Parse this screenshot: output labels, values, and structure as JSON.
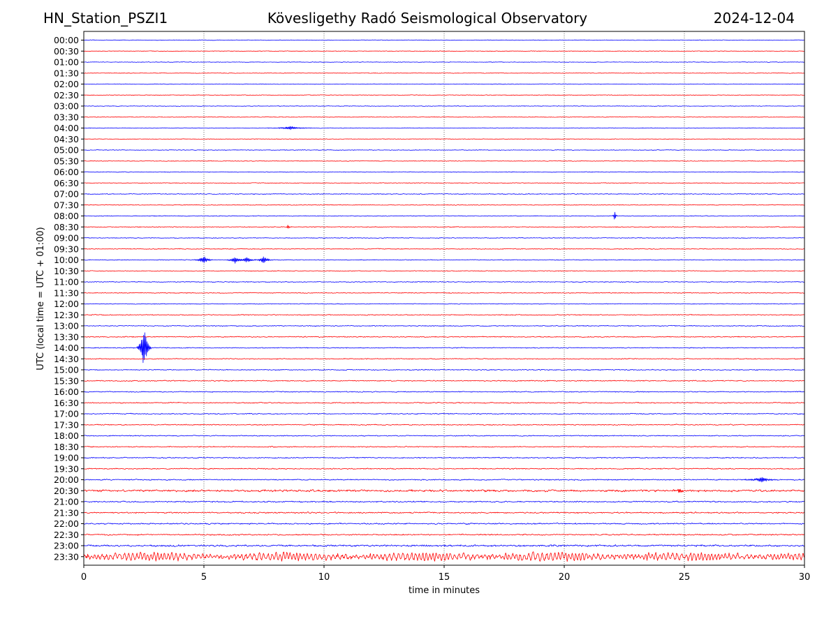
{
  "header": {
    "station": "HN_Station_PSZI1",
    "title": "Kövesligethy Radó Seismological Observatory",
    "date": "2024-12-04"
  },
  "chart_data": {
    "type": "line",
    "title": "Kövesligethy Radó Seismological Observatory",
    "xlabel": "time in minutes",
    "ylabel": "UTC (local time = UTC + 01:00)",
    "xlim": [
      0,
      30
    ],
    "xticks": [
      0,
      5,
      10,
      15,
      20,
      25,
      30
    ],
    "grid": "vertical dotted lines at x ticks",
    "trace_colors": [
      "#0000ff",
      "#ff0000"
    ],
    "rows": [
      "00:00",
      "00:30",
      "01:00",
      "01:30",
      "02:00",
      "02:30",
      "03:00",
      "03:30",
      "04:00",
      "04:30",
      "05:00",
      "05:30",
      "06:00",
      "06:30",
      "07:00",
      "07:30",
      "08:00",
      "08:30",
      "09:00",
      "09:30",
      "10:00",
      "10:30",
      "11:00",
      "11:30",
      "12:00",
      "12:30",
      "13:00",
      "13:30",
      "14:00",
      "14:30",
      "15:00",
      "15:30",
      "16:00",
      "16:30",
      "17:00",
      "17:30",
      "18:00",
      "18:30",
      "19:00",
      "19:30",
      "20:00",
      "20:30",
      "21:00",
      "21:30",
      "22:00",
      "22:30",
      "23:00",
      "23:30"
    ],
    "noise_level": [
      0.35,
      0.35,
      0.35,
      0.35,
      0.35,
      0.35,
      0.35,
      0.35,
      0.35,
      0.35,
      0.4,
      0.4,
      0.4,
      0.4,
      0.5,
      0.4,
      0.45,
      0.5,
      0.45,
      0.5,
      0.45,
      0.45,
      0.5,
      0.5,
      0.45,
      0.55,
      0.55,
      0.6,
      0.55,
      0.55,
      0.6,
      0.6,
      0.6,
      0.65,
      0.6,
      0.6,
      0.6,
      0.6,
      0.65,
      0.65,
      0.7,
      1.3,
      0.8,
      0.8,
      0.8,
      0.8,
      1.1,
      2.4
    ],
    "events": [
      {
        "row": "04:00",
        "minute": 8.6,
        "amplitude": 2.5,
        "duration": 1.0
      },
      {
        "row": "08:00",
        "minute": 22.1,
        "amplitude": 8,
        "duration": 0.1
      },
      {
        "row": "08:30",
        "minute": 8.5,
        "amplitude": 4,
        "duration": 0.1
      },
      {
        "row": "10:00",
        "minute": 5.0,
        "amplitude": 5,
        "duration": 0.5
      },
      {
        "row": "10:00",
        "minute": 6.3,
        "amplitude": 5,
        "duration": 0.4
      },
      {
        "row": "10:00",
        "minute": 6.8,
        "amplitude": 4,
        "duration": 0.4
      },
      {
        "row": "10:00",
        "minute": 7.5,
        "amplitude": 5,
        "duration": 0.4
      },
      {
        "row": "14:00",
        "minute": 2.5,
        "amplitude": 35,
        "duration": 0.3
      },
      {
        "row": "20:00",
        "minute": 28.2,
        "amplitude": 4,
        "duration": 0.8
      },
      {
        "row": "20:30",
        "minute": 24.8,
        "amplitude": 4,
        "duration": 0.3
      }
    ]
  }
}
